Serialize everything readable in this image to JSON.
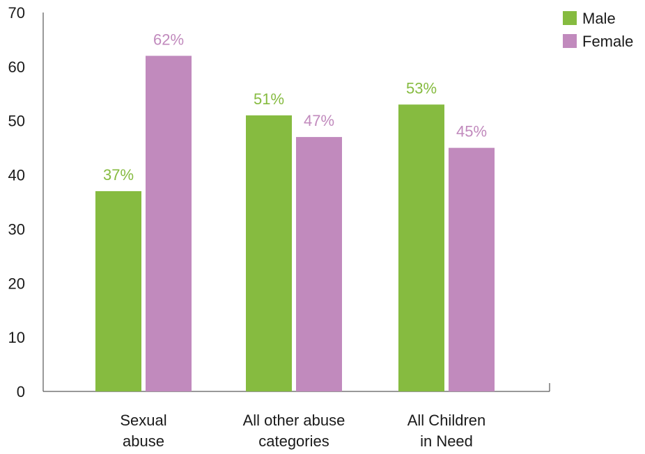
{
  "chart_data": {
    "type": "bar",
    "categories": [
      [
        "Sexual",
        "abuse"
      ],
      [
        "All other abuse",
        "categories"
      ],
      [
        "All Children",
        "in Need"
      ]
    ],
    "series": [
      {
        "name": "Male",
        "color": "#86bb40",
        "values": [
          37,
          51,
          53
        ],
        "labels": [
          "37%",
          "51%",
          "53%"
        ]
      },
      {
        "name": "Female",
        "color": "#c18abd",
        "values": [
          62,
          47,
          45
        ],
        "labels": [
          "62%",
          "47%",
          "45%"
        ]
      }
    ],
    "ylim": [
      0,
      70
    ],
    "yticks": [
      "0",
      "10",
      "20",
      "30",
      "40",
      "50",
      "60",
      "70"
    ],
    "grid": false,
    "legend_position": "top-right"
  }
}
